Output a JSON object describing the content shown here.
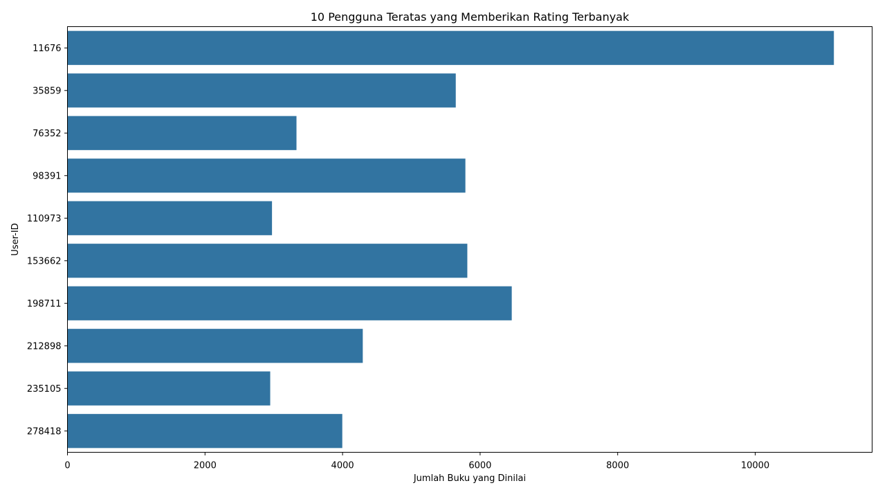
{
  "chart_data": {
    "type": "bar",
    "orientation": "horizontal",
    "title": "10 Pengguna Teratas yang Memberikan Rating Terbanyak",
    "xlabel": "Jumlah Buku yang Dinilai",
    "ylabel": "User-ID",
    "categories": [
      "11676",
      "35859",
      "76352",
      "98391",
      "110973",
      "153662",
      "198711",
      "212898",
      "235105",
      "278418"
    ],
    "values": [
      11144,
      5646,
      3330,
      5786,
      2974,
      5814,
      6460,
      4294,
      2948,
      3996
    ],
    "xlim": [
      0,
      11700
    ],
    "xticks": [
      0,
      2000,
      4000,
      6000,
      8000,
      10000
    ],
    "xtick_labels": [
      "0",
      "2000",
      "4000",
      "6000",
      "8000",
      "10000"
    ],
    "grid": false,
    "colors": {
      "bar": "#3274a1"
    }
  }
}
